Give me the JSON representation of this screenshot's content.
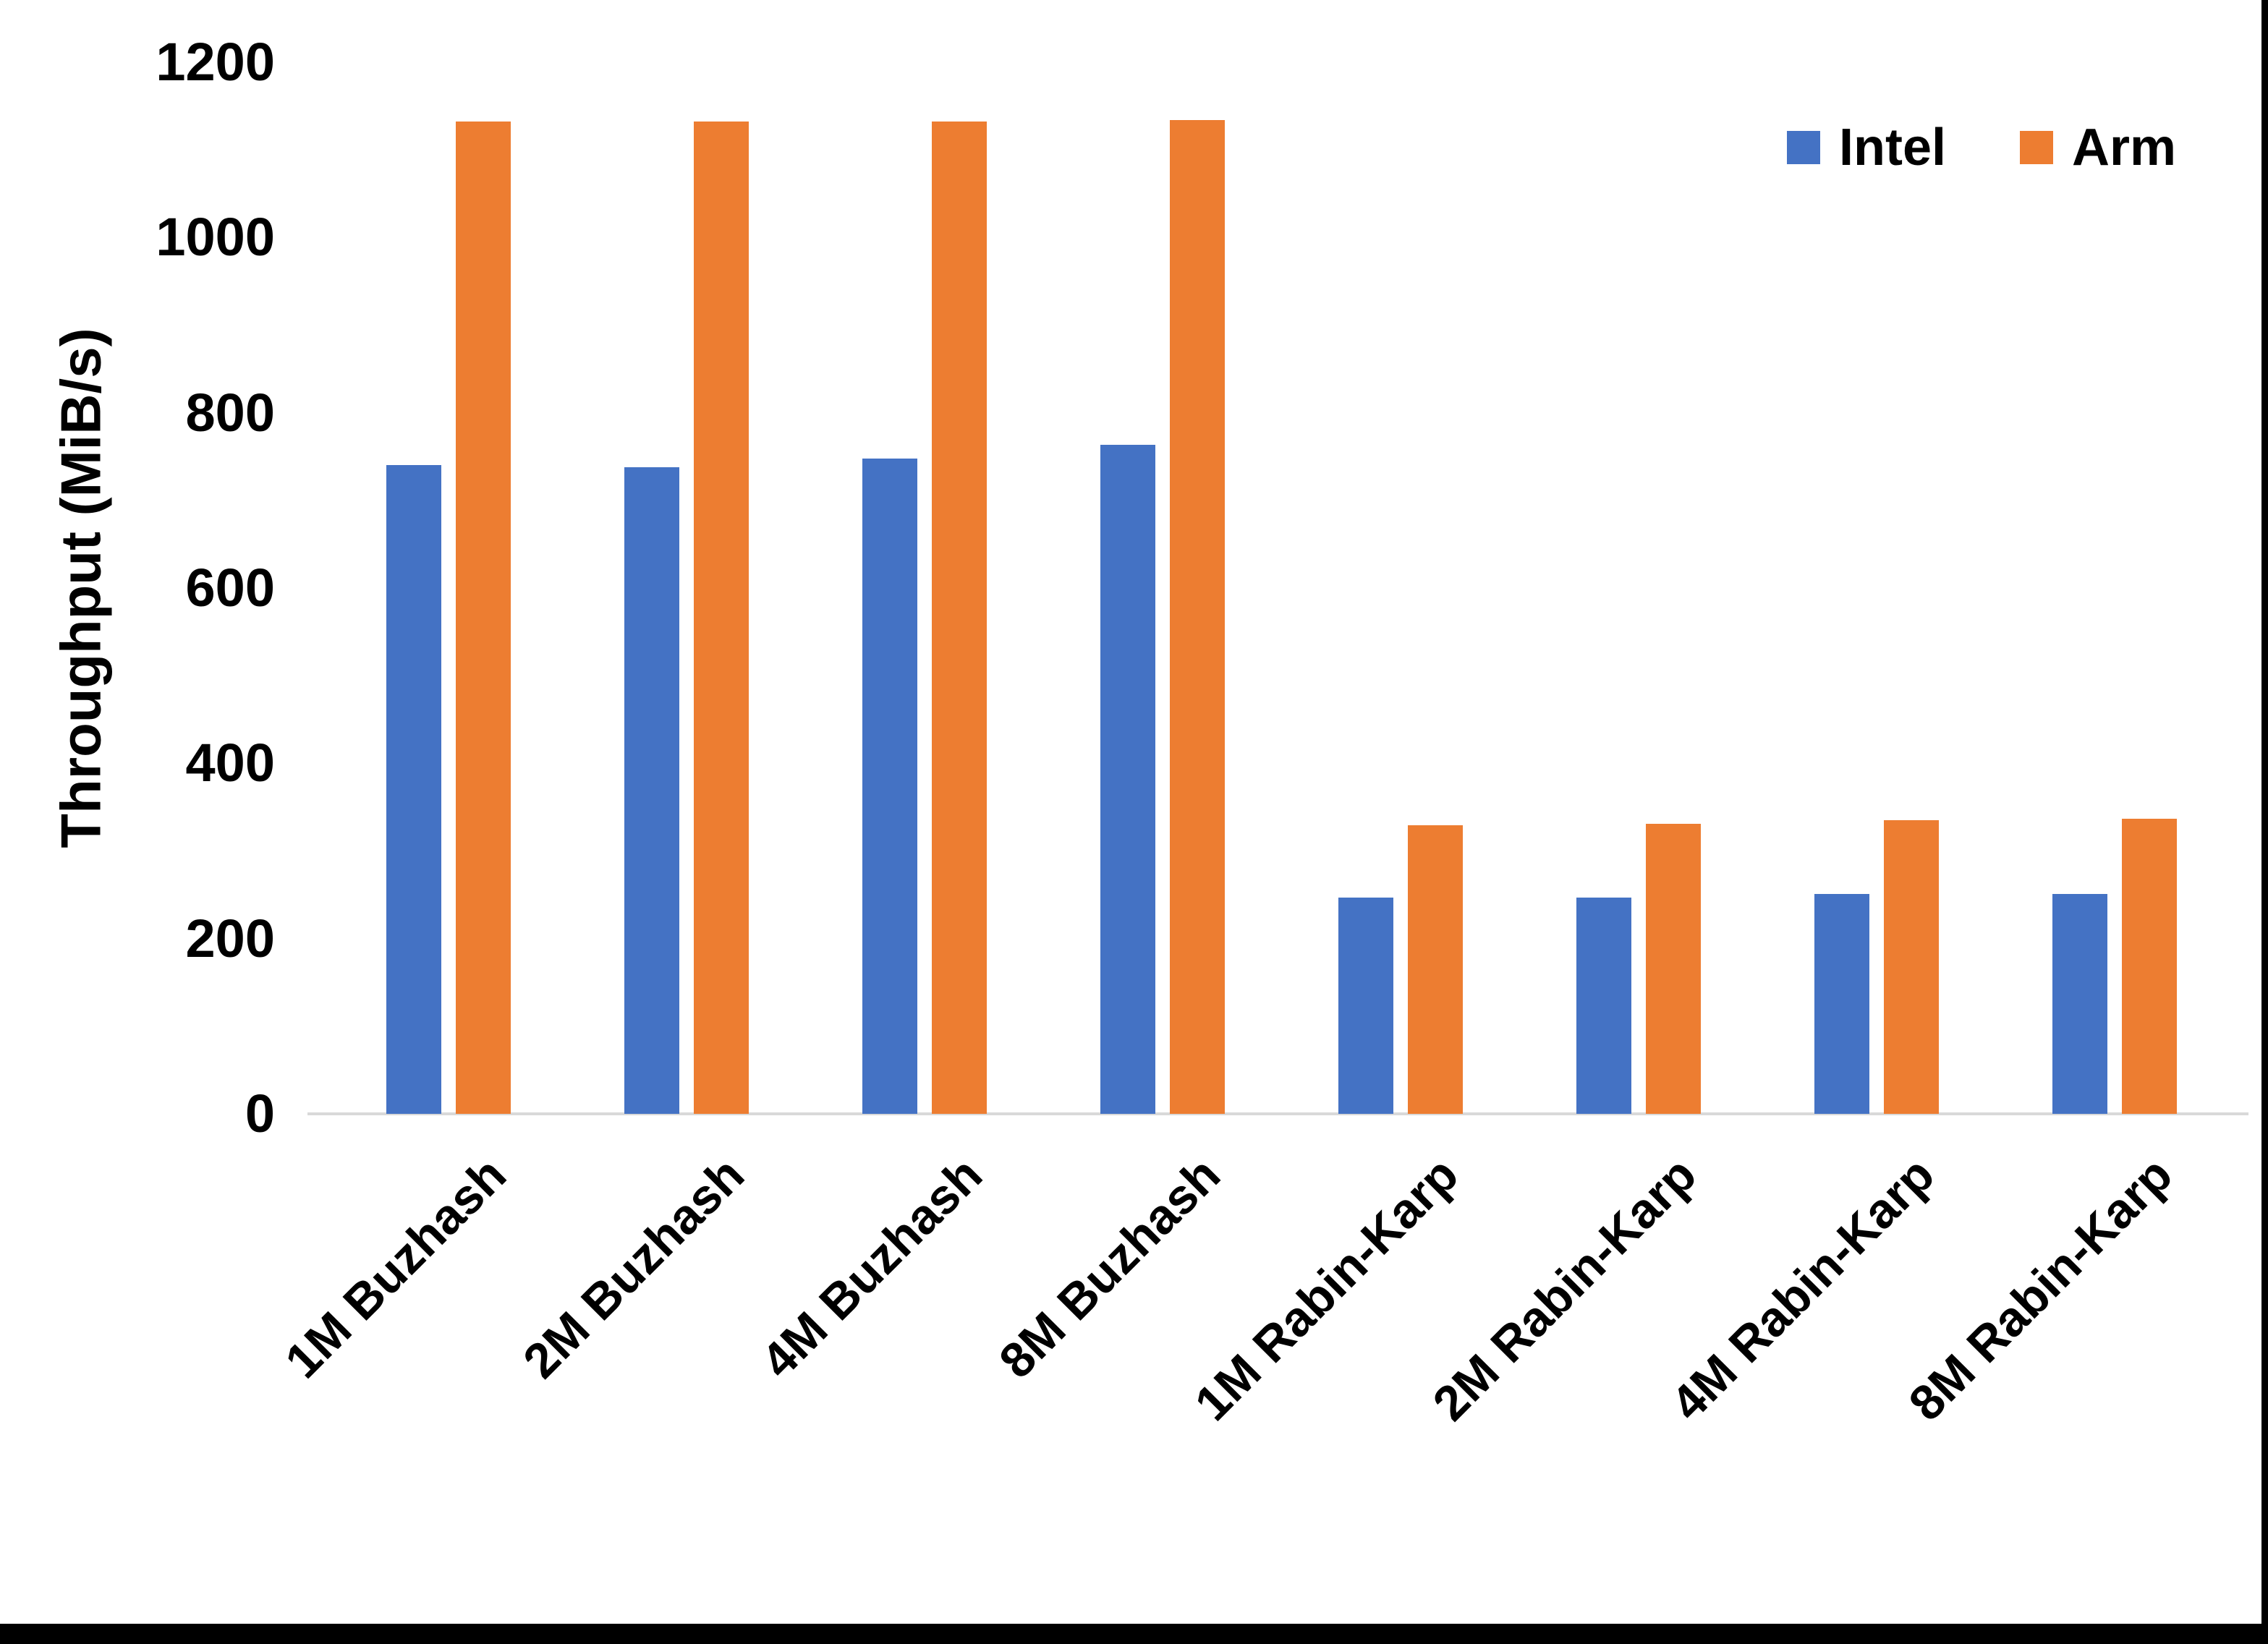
{
  "figure": {
    "background_color": "#FFFFFF",
    "bottom_edge_color": "#000000",
    "right_edge_color": "#000000"
  },
  "chart_data": {
    "type": "bar",
    "title": "",
    "ylabel": "Throughput (MiB/s)",
    "xlabel": "",
    "categories": [
      "1M Buzhash",
      "2M Buzhash",
      "4M Buzhash",
      "8M Buzhash",
      "1M Rabin-Karp",
      "2M Rabin-Karp",
      "4M Rabin-Karp",
      "8M Rabin-Karp"
    ],
    "series": [
      {
        "name": "Intel",
        "color": "#4472C4",
        "values": [
          740,
          738,
          748,
          763,
          247,
          247,
          251,
          251
        ]
      },
      {
        "name": "Arm",
        "color": "#ED7D31",
        "values": [
          1132,
          1132,
          1132,
          1134,
          329,
          331,
          335,
          337
        ]
      }
    ],
    "ylim": [
      0,
      1200
    ],
    "yticks": [
      0,
      200,
      400,
      600,
      800,
      1000,
      1200
    ],
    "grid": false,
    "legend_position": "top-right",
    "axis_line_color": "#D9D9D9",
    "text_color": "#000000"
  },
  "legend": {
    "items": [
      {
        "label": "Intel",
        "color": "#4472C4"
      },
      {
        "label": "Arm",
        "color": "#ED7D31"
      }
    ]
  }
}
